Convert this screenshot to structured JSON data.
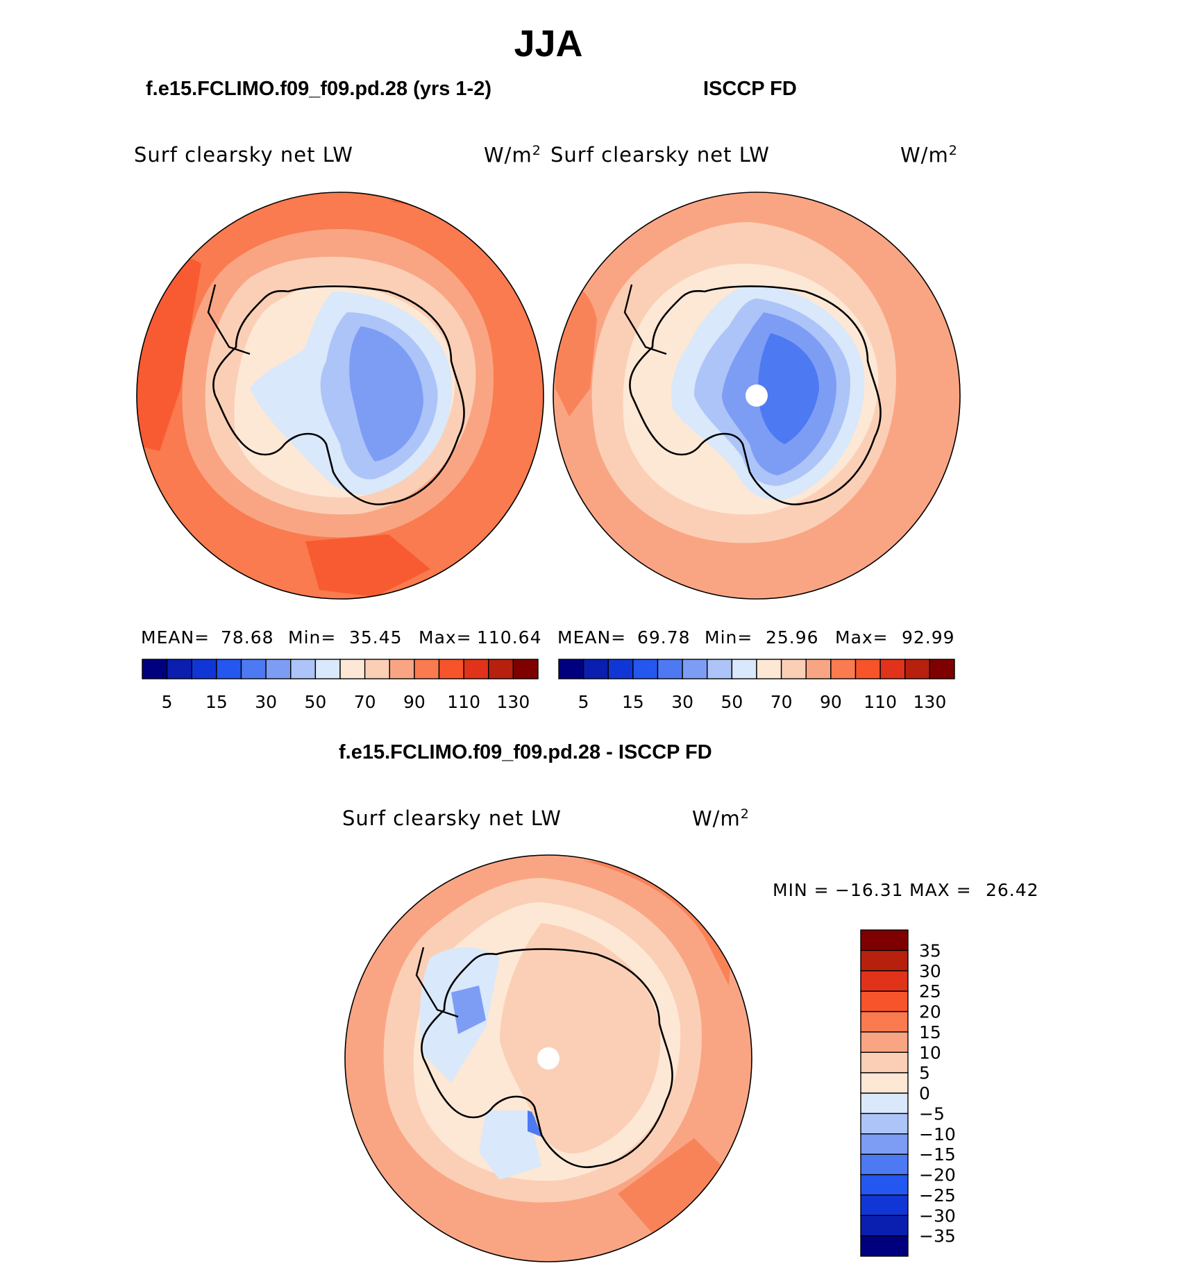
{
  "figure_title": "JJA",
  "panels": [
    {
      "case_title": "f.e15.FCLIMO.f09_f09.pd.28 (yrs 1-2)",
      "variable": "Surf clearsky net LW",
      "units_base": "W/m",
      "units_exp": "2",
      "stats": {
        "mean_label": "MEAN=",
        "mean": "78.68",
        "min_label": "Min=",
        "min": "35.45",
        "max_label": "Max=",
        "max": "110.64"
      }
    },
    {
      "case_title": "ISCCP FD",
      "variable": "Surf clearsky net LW",
      "units_base": "W/m",
      "units_exp": "2",
      "stats": {
        "mean_label": "MEAN=",
        "mean": "69.78",
        "min_label": "Min=",
        "min": "25.96",
        "max_label": "Max=",
        "max": "92.99"
      }
    },
    {
      "case_title": "f.e15.FCLIMO.f09_f09.pd.28 - ISCCP FD",
      "variable": "Surf clearsky net LW",
      "units_base": "W/m",
      "units_exp": "2",
      "stats": {
        "min_label": "MIN =",
        "min": "−16.31",
        "max_label": "MAX =",
        "max": "26.42"
      }
    }
  ],
  "colorbar_abs": {
    "colors": [
      "#00007f",
      "#0a1fb0",
      "#1136d6",
      "#2457f0",
      "#4d7af2",
      "#7d9df5",
      "#adc4f8",
      "#d9e8fa",
      "#fde8d6",
      "#fbcfb6",
      "#f9a584",
      "#f97b4f",
      "#f7542b",
      "#e0331a",
      "#b8200e",
      "#7f0000"
    ],
    "labels": [
      "5",
      "15",
      "30",
      "50",
      "70",
      "90",
      "110",
      "130"
    ]
  },
  "colorbar_diff": {
    "colors": [
      "#00007f",
      "#0a1fb0",
      "#1136d6",
      "#2457f0",
      "#4d7af2",
      "#7d9df5",
      "#adc4f8",
      "#d9e8fa",
      "#fde8d6",
      "#fbcfb6",
      "#f9a584",
      "#f97b4f",
      "#f7542b",
      "#e0331a",
      "#b8200e",
      "#7f0000"
    ],
    "labels": [
      "−35",
      "−30",
      "−25",
      "−20",
      "−15",
      "−10",
      "−5",
      "0",
      "5",
      "10",
      "15",
      "20",
      "25",
      "30",
      "35"
    ]
  }
}
